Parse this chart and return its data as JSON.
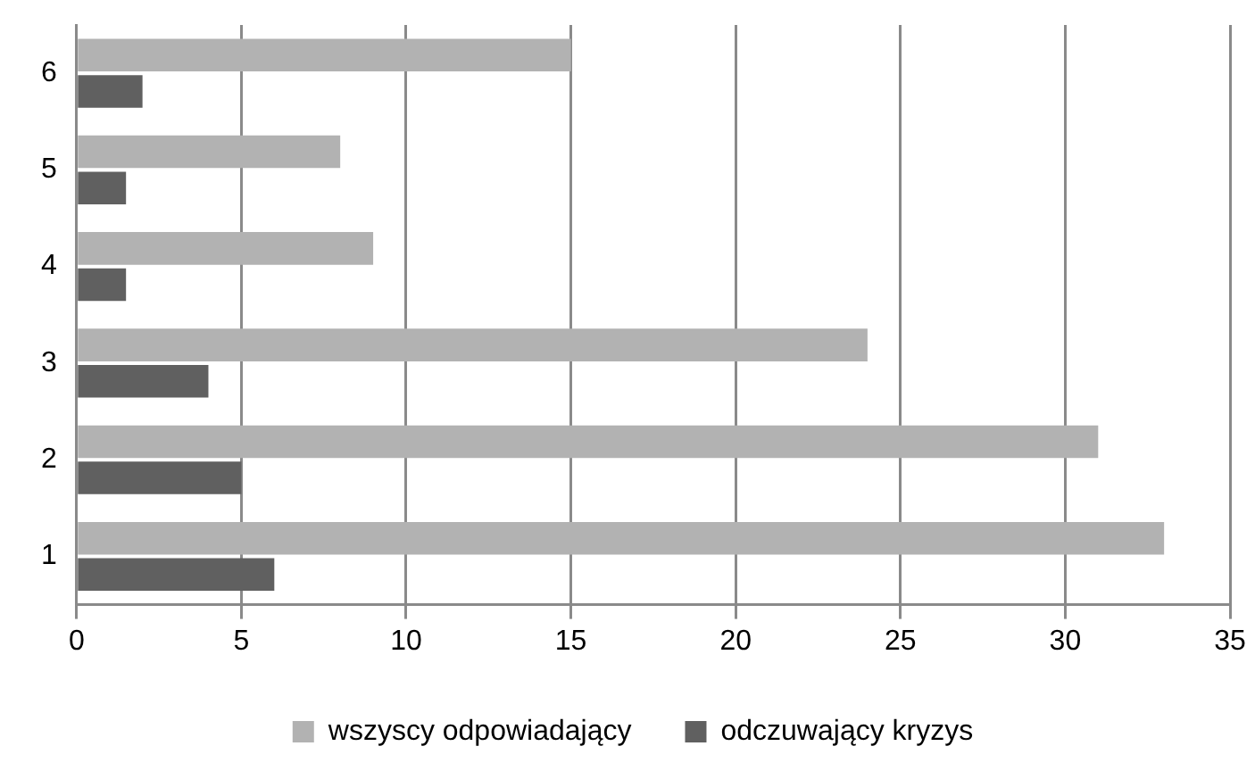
{
  "chart_data": {
    "type": "bar",
    "orientation": "horizontal",
    "categories": [
      "6",
      "5",
      "4",
      "3",
      "2",
      "1"
    ],
    "series": [
      {
        "name": "wszyscy odpowiadający",
        "color": "#b2b2b2",
        "values": [
          15,
          8,
          9,
          24,
          31,
          33
        ]
      },
      {
        "name": "odczuwający kryzys",
        "color": "#606060",
        "values": [
          2,
          1.5,
          1.5,
          4,
          5,
          6
        ]
      }
    ],
    "xlim": [
      0,
      35
    ],
    "xticks": [
      0,
      5,
      10,
      15,
      20,
      25,
      30,
      35
    ],
    "grid": "x",
    "legend": "bottom"
  }
}
